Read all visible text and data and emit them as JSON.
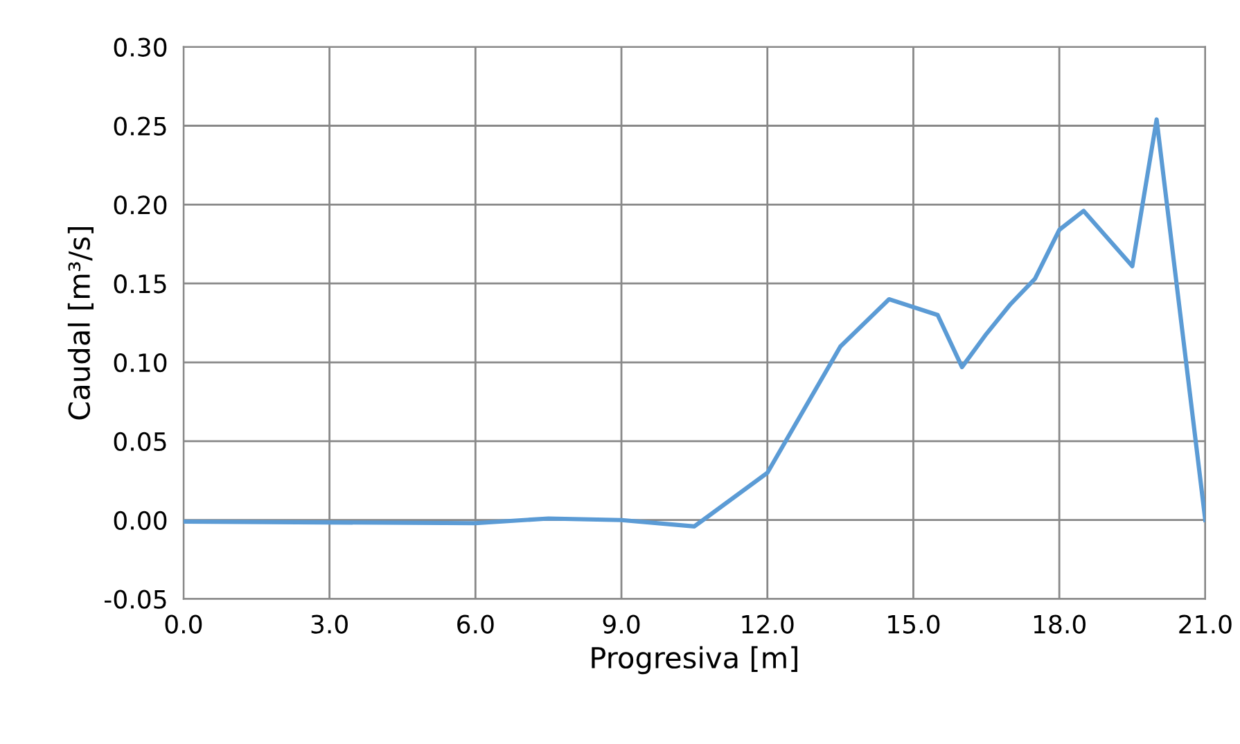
{
  "chart_data": {
    "type": "line",
    "xlabel": "Progresiva [m]",
    "ylabel": "Caudal [m³/s]",
    "x": [
      0,
      6,
      7.5,
      9,
      10.5,
      12,
      13.5,
      14.5,
      15.5,
      16,
      16.5,
      17,
      17.5,
      18,
      18.5,
      19.5,
      20,
      21
    ],
    "series": [
      {
        "color": "#5b9bd5",
        "values": [
          -0.001,
          -0.002,
          0.001,
          0.0,
          -0.004,
          0.03,
          0.11,
          0.14,
          0.13,
          0.097,
          0.118,
          0.137,
          0.153,
          0.184,
          0.196,
          0.161,
          0.254,
          0.0
        ]
      }
    ],
    "xlim": [
      0,
      21
    ],
    "ylim": [
      -0.05,
      0.3
    ],
    "xticks": [
      {
        "value": 0,
        "label": "0.0"
      },
      {
        "value": 3,
        "label": "3.0"
      },
      {
        "value": 6,
        "label": "6.0"
      },
      {
        "value": 9,
        "label": "9.0"
      },
      {
        "value": 12,
        "label": "12.0"
      },
      {
        "value": 15,
        "label": "15.0"
      },
      {
        "value": 18,
        "label": "18.0"
      },
      {
        "value": 21,
        "label": "21.0"
      }
    ],
    "yticks": [
      {
        "value": -0.05,
        "label": "-0.05"
      },
      {
        "value": 0,
        "label": "0.00"
      },
      {
        "value": 0.05,
        "label": "0.05"
      },
      {
        "value": 0.1,
        "label": "0.10"
      },
      {
        "value": 0.15,
        "label": "0.15"
      },
      {
        "value": 0.2,
        "label": "0.20"
      },
      {
        "value": 0.25,
        "label": "0.25"
      },
      {
        "value": 0.3,
        "label": "0.30"
      }
    ],
    "grid": true,
    "marker": "none",
    "line_style": "solid"
  }
}
